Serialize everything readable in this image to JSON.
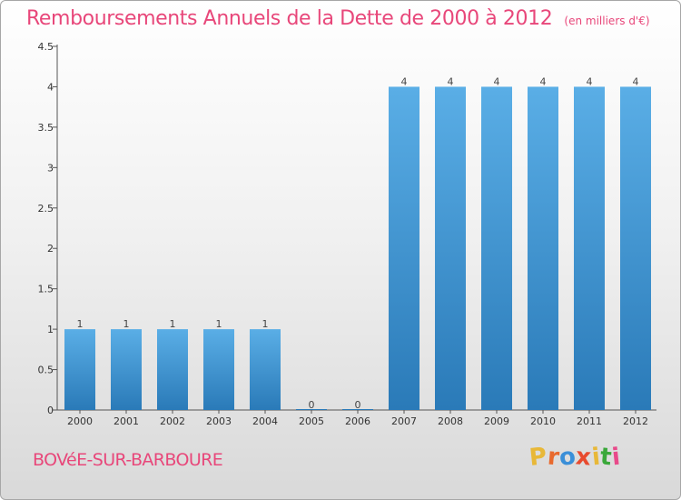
{
  "header": {
    "title": "Remboursements Annuels de la Dette de 2000 à 2012",
    "unit": "(en milliers d'€)"
  },
  "footer": {
    "commune": "BOVéE-SUR-BARBOURE",
    "logo": "Proxiti",
    "logo_colors": [
      "#e8b838",
      "#e86a2e",
      "#3a8fd8",
      "#e84a2e",
      "#e8b838",
      "#3aa83a",
      "#e84a8a"
    ]
  },
  "colors": {
    "accent": "#e8477a",
    "bar_light": "#5aaee6",
    "bar_dark": "#2a7ab8"
  },
  "chart_data": {
    "type": "bar",
    "title": "Remboursements Annuels de la Dette de 2000 à 2012",
    "xlabel": "",
    "ylabel": "",
    "categories": [
      "2000",
      "2001",
      "2002",
      "2003",
      "2004",
      "2005",
      "2006",
      "2007",
      "2008",
      "2009",
      "2010",
      "2011",
      "2012"
    ],
    "values": [
      1,
      1,
      1,
      1,
      1,
      0,
      0,
      4,
      4,
      4,
      4,
      4,
      4
    ],
    "data_labels": [
      "1",
      "1",
      "1",
      "1",
      "1",
      "0",
      "0",
      "4",
      "4",
      "4",
      "4",
      "4",
      "4"
    ],
    "ylim": [
      0,
      4.5
    ],
    "yticks": [
      "0",
      "0.5",
      "1",
      "1.5",
      "2",
      "2.5",
      "3",
      "3.5",
      "4",
      "4.5"
    ],
    "grid": false,
    "legend": "none"
  }
}
